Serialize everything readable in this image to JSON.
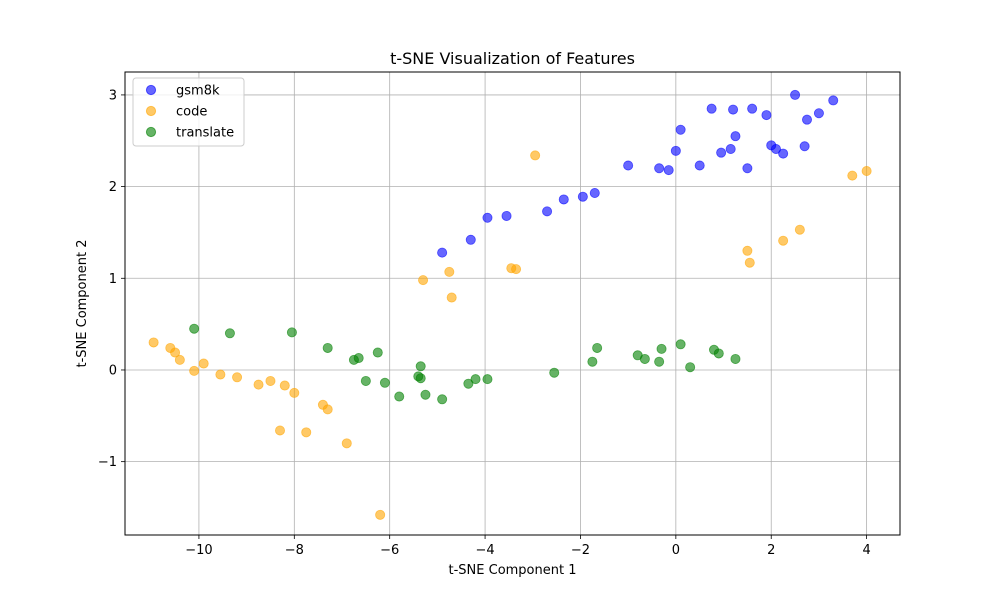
{
  "chart_data": {
    "type": "scatter",
    "title": "t-SNE Visualization of Features",
    "xlabel": "t-SNE Component 1",
    "ylabel": "t-SNE Component 2",
    "xlim": [
      -11.55,
      4.7
    ],
    "ylim": [
      -1.8,
      3.25
    ],
    "xticks": [
      -10,
      -8,
      -6,
      -4,
      -2,
      0,
      2,
      4
    ],
    "xtick_labels": [
      "−10",
      "−8",
      "−6",
      "−4",
      "−2",
      "0",
      "2",
      "4"
    ],
    "yticks": [
      -1,
      0,
      1,
      2,
      3
    ],
    "ytick_labels": [
      "−1",
      "0",
      "1",
      "2",
      "3"
    ],
    "grid": true,
    "legend_position": "top-left",
    "series": [
      {
        "name": "gsm8k",
        "color": "#0000ff",
        "points": [
          [
            -4.9,
            1.28
          ],
          [
            -4.3,
            1.42
          ],
          [
            -3.95,
            1.66
          ],
          [
            -3.55,
            1.68
          ],
          [
            -2.7,
            1.73
          ],
          [
            -2.35,
            1.86
          ],
          [
            -1.95,
            1.89
          ],
          [
            -1.7,
            1.93
          ],
          [
            -1.0,
            2.23
          ],
          [
            -0.35,
            2.2
          ],
          [
            -0.15,
            2.18
          ],
          [
            0.0,
            2.39
          ],
          [
            0.1,
            2.62
          ],
          [
            0.5,
            2.23
          ],
          [
            0.75,
            2.85
          ],
          [
            0.95,
            2.37
          ],
          [
            1.15,
            2.41
          ],
          [
            1.2,
            2.84
          ],
          [
            1.25,
            2.55
          ],
          [
            1.5,
            2.2
          ],
          [
            1.6,
            2.85
          ],
          [
            1.9,
            2.78
          ],
          [
            2.0,
            2.45
          ],
          [
            2.1,
            2.41
          ],
          [
            2.25,
            2.36
          ],
          [
            2.5,
            3.0
          ],
          [
            2.7,
            2.44
          ],
          [
            2.75,
            2.73
          ],
          [
            3.0,
            2.8
          ],
          [
            3.3,
            2.94
          ]
        ]
      },
      {
        "name": "code",
        "color": "#ffa500",
        "points": [
          [
            -10.95,
            0.3
          ],
          [
            -10.6,
            0.24
          ],
          [
            -10.5,
            0.19
          ],
          [
            -10.4,
            0.11
          ],
          [
            -10.1,
            -0.01
          ],
          [
            -9.9,
            0.07
          ],
          [
            -9.55,
            -0.05
          ],
          [
            -9.2,
            -0.08
          ],
          [
            -8.75,
            -0.16
          ],
          [
            -8.5,
            -0.12
          ],
          [
            -8.2,
            -0.17
          ],
          [
            -8.0,
            -0.25
          ],
          [
            -8.3,
            -0.66
          ],
          [
            -7.75,
            -0.68
          ],
          [
            -7.4,
            -0.38
          ],
          [
            -7.3,
            -0.43
          ],
          [
            -6.9,
            -0.8
          ],
          [
            -6.2,
            -1.58
          ],
          [
            -5.3,
            0.98
          ],
          [
            -4.75,
            1.07
          ],
          [
            -4.7,
            0.79
          ],
          [
            -3.45,
            1.11
          ],
          [
            -3.35,
            1.1
          ],
          [
            -2.95,
            2.34
          ],
          [
            1.5,
            1.3
          ],
          [
            1.55,
            1.17
          ],
          [
            2.25,
            1.41
          ],
          [
            2.6,
            1.53
          ],
          [
            3.7,
            2.12
          ],
          [
            4.0,
            2.17
          ]
        ]
      },
      {
        "name": "translate",
        "color": "#008000",
        "points": [
          [
            -10.1,
            0.45
          ],
          [
            -9.35,
            0.4
          ],
          [
            -8.05,
            0.41
          ],
          [
            -7.3,
            0.24
          ],
          [
            -6.75,
            0.11
          ],
          [
            -6.65,
            0.13
          ],
          [
            -6.5,
            -0.12
          ],
          [
            -6.25,
            0.19
          ],
          [
            -6.1,
            -0.14
          ],
          [
            -5.8,
            -0.29
          ],
          [
            -5.4,
            -0.07
          ],
          [
            -5.35,
            -0.09
          ],
          [
            -5.35,
            0.04
          ],
          [
            -5.25,
            -0.27
          ],
          [
            -4.9,
            -0.32
          ],
          [
            -4.35,
            -0.15
          ],
          [
            -4.2,
            -0.1
          ],
          [
            -3.95,
            -0.1
          ],
          [
            -2.55,
            -0.03
          ],
          [
            -1.75,
            0.09
          ],
          [
            -1.65,
            0.24
          ],
          [
            -0.8,
            0.16
          ],
          [
            -0.65,
            0.12
          ],
          [
            -0.35,
            0.09
          ],
          [
            -0.3,
            0.23
          ],
          [
            0.1,
            0.28
          ],
          [
            0.3,
            0.03
          ],
          [
            0.8,
            0.22
          ],
          [
            0.9,
            0.18
          ],
          [
            1.25,
            0.12
          ]
        ]
      }
    ]
  }
}
